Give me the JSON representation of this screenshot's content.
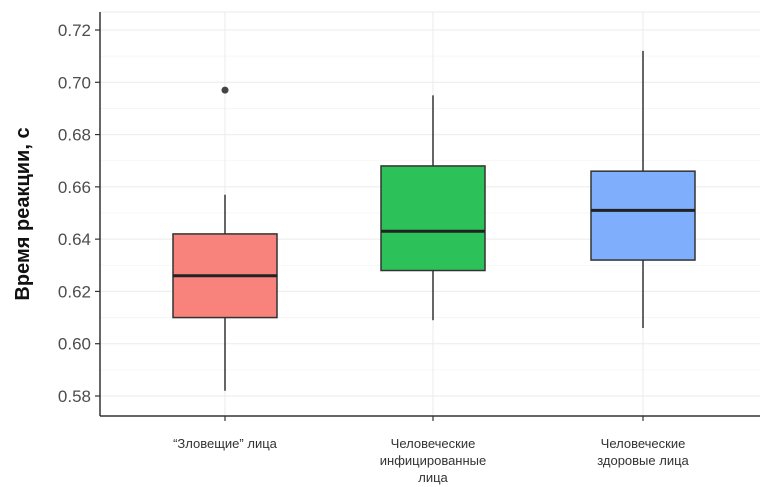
{
  "chart_data": {
    "type": "boxplot",
    "title": "",
    "xlabel": "",
    "ylabel": "Время реакции, с",
    "ylim": [
      0.575,
      0.725
    ],
    "yticks": [
      0.58,
      0.6,
      0.62,
      0.64,
      0.66,
      0.68,
      0.7,
      0.72
    ],
    "ytick_labels": [
      "0.58",
      "0.60",
      "0.62",
      "0.64",
      "0.66",
      "0.68",
      "0.70",
      "0.72"
    ],
    "grid": true,
    "legend": false,
    "categories": [
      {
        "label_lines": [
          "“Зловещие” лица"
        ],
        "color": "#f8837c",
        "whisker_low": 0.582,
        "q1": 0.61,
        "median": 0.626,
        "q3": 0.642,
        "whisker_high": 0.657,
        "outliers": [
          0.697
        ]
      },
      {
        "label_lines": [
          "Человеческие",
          "инфицированные",
          "лица"
        ],
        "color": "#2dc15a",
        "whisker_low": 0.609,
        "q1": 0.628,
        "median": 0.643,
        "q3": 0.668,
        "whisker_high": 0.695,
        "outliers": []
      },
      {
        "label_lines": [
          "Человеческие",
          "здоровые лица"
        ],
        "color": "#7eaefc",
        "whisker_low": 0.606,
        "q1": 0.632,
        "median": 0.651,
        "q3": 0.666,
        "whisker_high": 0.712,
        "outliers": []
      }
    ]
  }
}
